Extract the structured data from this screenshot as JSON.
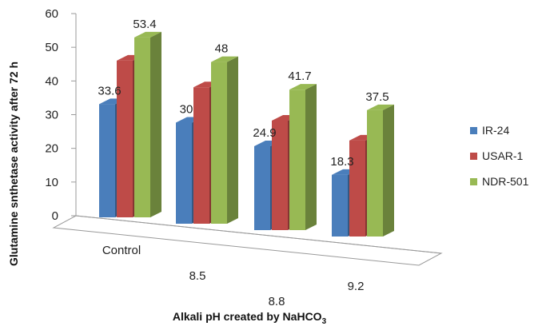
{
  "chart_data": {
    "type": "bar",
    "categories": [
      "Control",
      "8.5",
      "8.8",
      "9.2"
    ],
    "series": [
      {
        "name": "IR-24",
        "values": [
          33.6,
          30,
          24.9,
          18.3
        ],
        "color": "#4a7ebb"
      },
      {
        "name": "USAR-1",
        "values": [
          46.5,
          40.5,
          32.5,
          28.5
        ],
        "color": "#be4b48"
      },
      {
        "name": "NDR-501",
        "values": [
          53.4,
          48,
          41.7,
          37.5
        ],
        "color": "#98b954"
      }
    ],
    "data_labels": [
      [
        "33.6",
        "30",
        "24.9",
        "18.3"
      ],
      [
        "",
        "",
        "",
        ""
      ],
      [
        "53.4",
        "48",
        "41.7",
        "37.5"
      ]
    ],
    "ylim": [
      0,
      60
    ],
    "yticks": [
      "0",
      "10",
      "20",
      "30",
      "40",
      "50",
      "60"
    ],
    "ylabel": "Glutamine snthetase activity after 72 h",
    "xlabel": "Alkali pH created by  NaHCO",
    "xlabel_sub": "3",
    "legend_position": "right"
  }
}
